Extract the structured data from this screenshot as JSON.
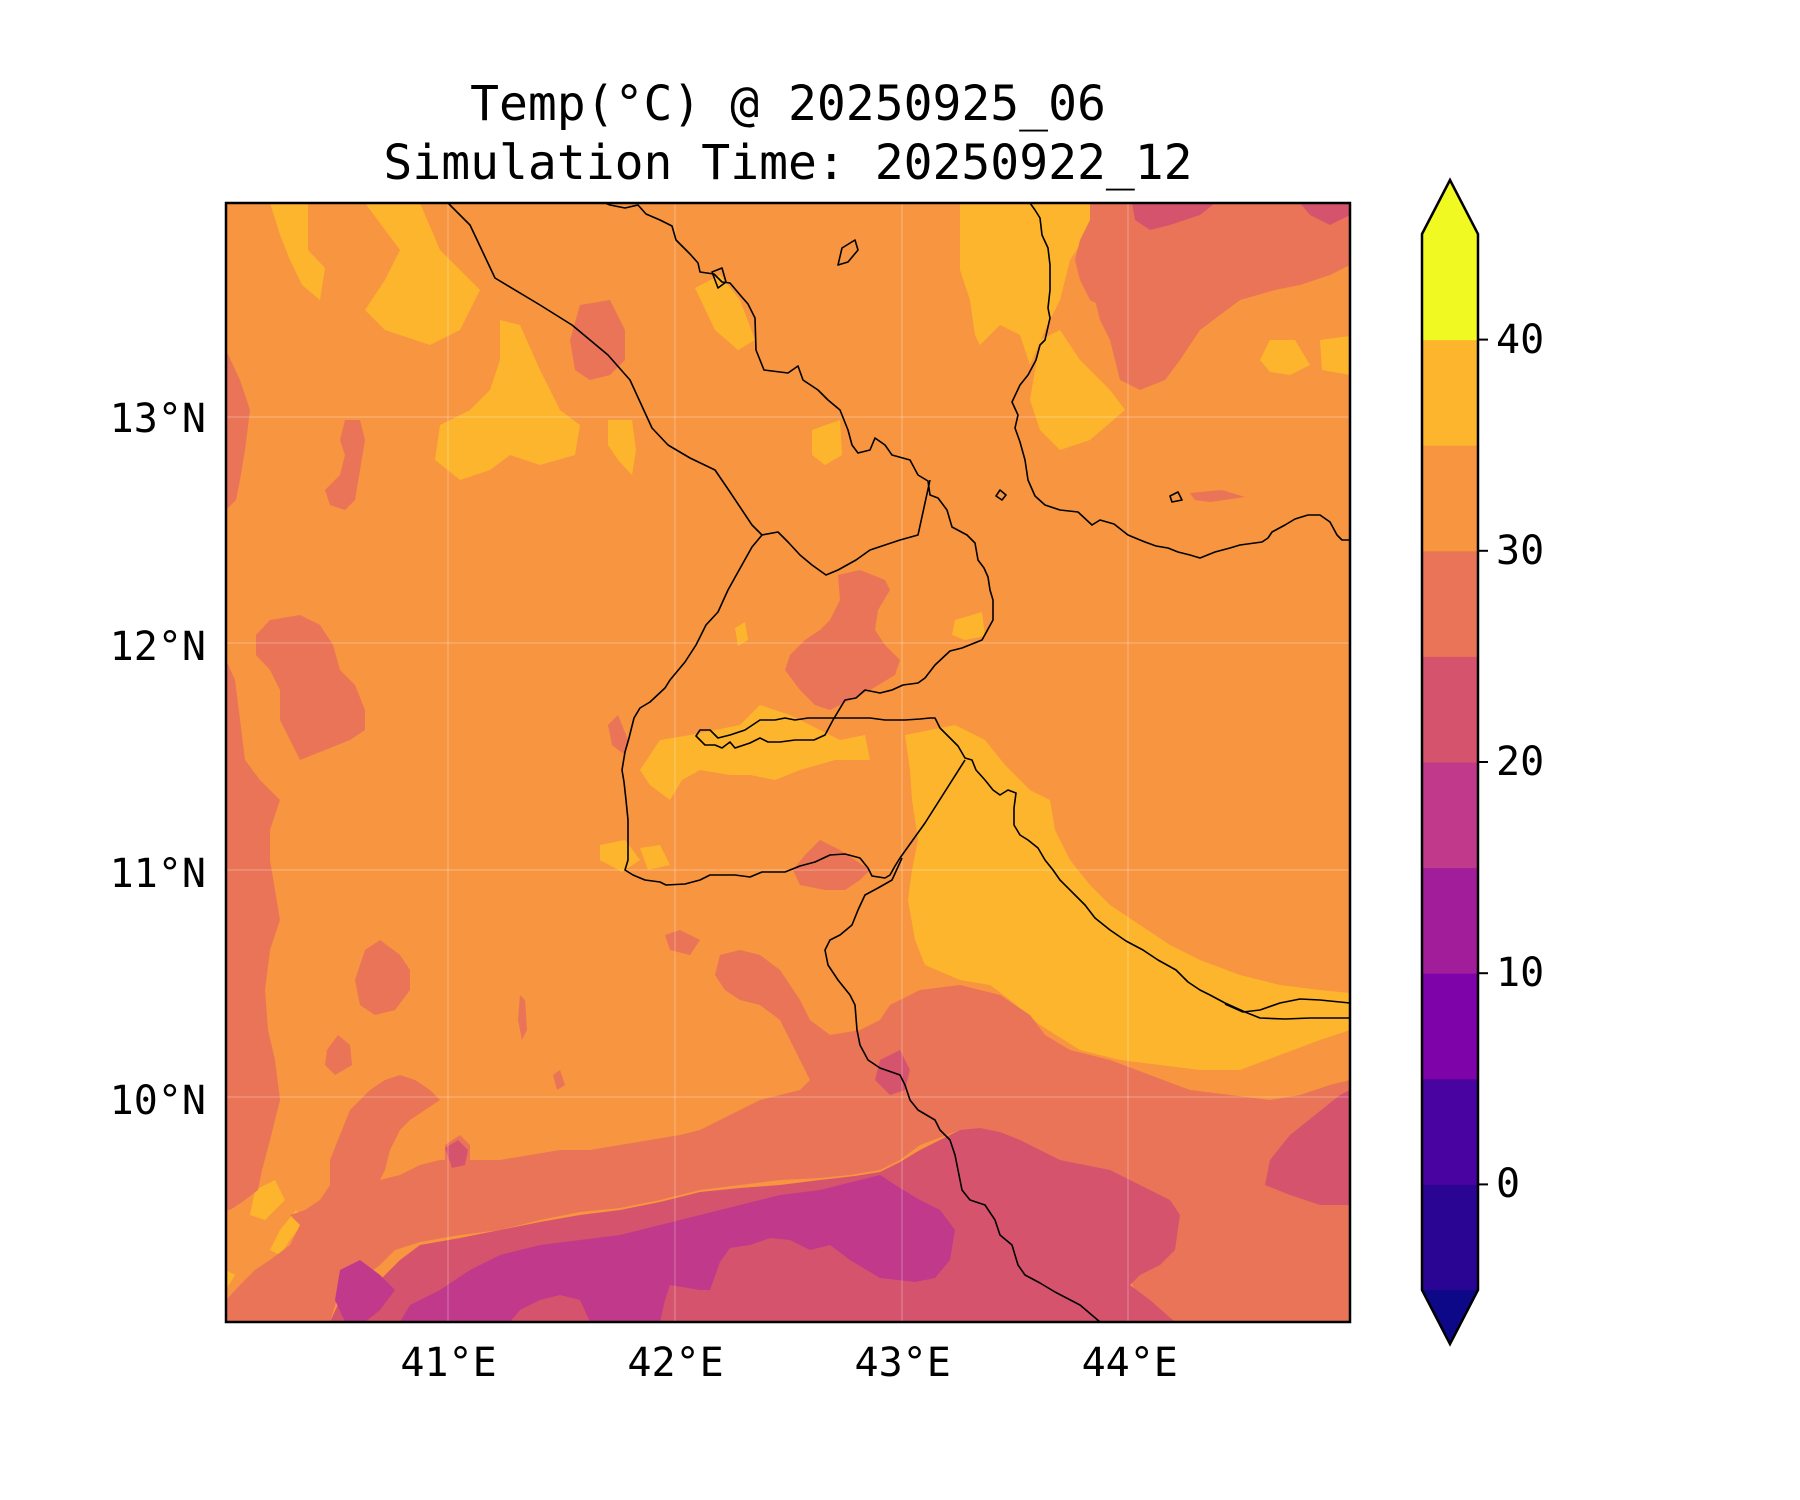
{
  "title": {
    "line1": "Temp(°C) @ 20250925_06",
    "line2": "Simulation Time: 20250922_12"
  },
  "map": {
    "region": {
      "lon_min": 40.02,
      "lon_max": 44.97,
      "lat_min": 9.03,
      "lat_max": 13.95
    },
    "lat_ticks": [
      {
        "value": 13,
        "label": "13°N"
      },
      {
        "value": 12,
        "label": "12°N"
      },
      {
        "value": 11,
        "label": "11°N"
      },
      {
        "value": 10,
        "label": "10°N"
      }
    ],
    "lon_ticks": [
      {
        "value": 41,
        "label": "41°E"
      },
      {
        "value": 42,
        "label": "42°E"
      },
      {
        "value": 43,
        "label": "43°E"
      },
      {
        "value": 44,
        "label": "44°E"
      }
    ],
    "dominant_level": "30-35",
    "colors": {
      "lt_-5": "#0d0887",
      "-5_0": "#2a0593",
      "0_5": "#4903a0",
      "5_10": "#7e03a8",
      "10_15": "#a21d9a",
      "15_20": "#c0398a",
      "20_25": "#d6536e",
      "25_30": "#ea7457",
      "30_35": "#f79540",
      "35_40": "#fdb52d",
      "40_45": "#f0f921",
      "gt_45": "#f0f921"
    }
  },
  "colorbar": {
    "levels": [
      -5,
      0,
      5,
      10,
      15,
      20,
      25,
      30,
      35,
      40,
      45
    ],
    "colors": [
      "#2a0593",
      "#4903a0",
      "#7e03a8",
      "#a21d9a",
      "#c0398a",
      "#d6536e",
      "#ea7457",
      "#f79540",
      "#fdb52d",
      "#f0f921"
    ],
    "extend_min_color": "#0d0887",
    "extend_max_color": "#f0f921",
    "tick_labels": [
      {
        "value": 40,
        "label": "40"
      },
      {
        "value": 30,
        "label": "30"
      },
      {
        "value": 20,
        "label": "20"
      },
      {
        "value": 10,
        "label": "10"
      },
      {
        "value": 0,
        "label": "0"
      }
    ]
  }
}
